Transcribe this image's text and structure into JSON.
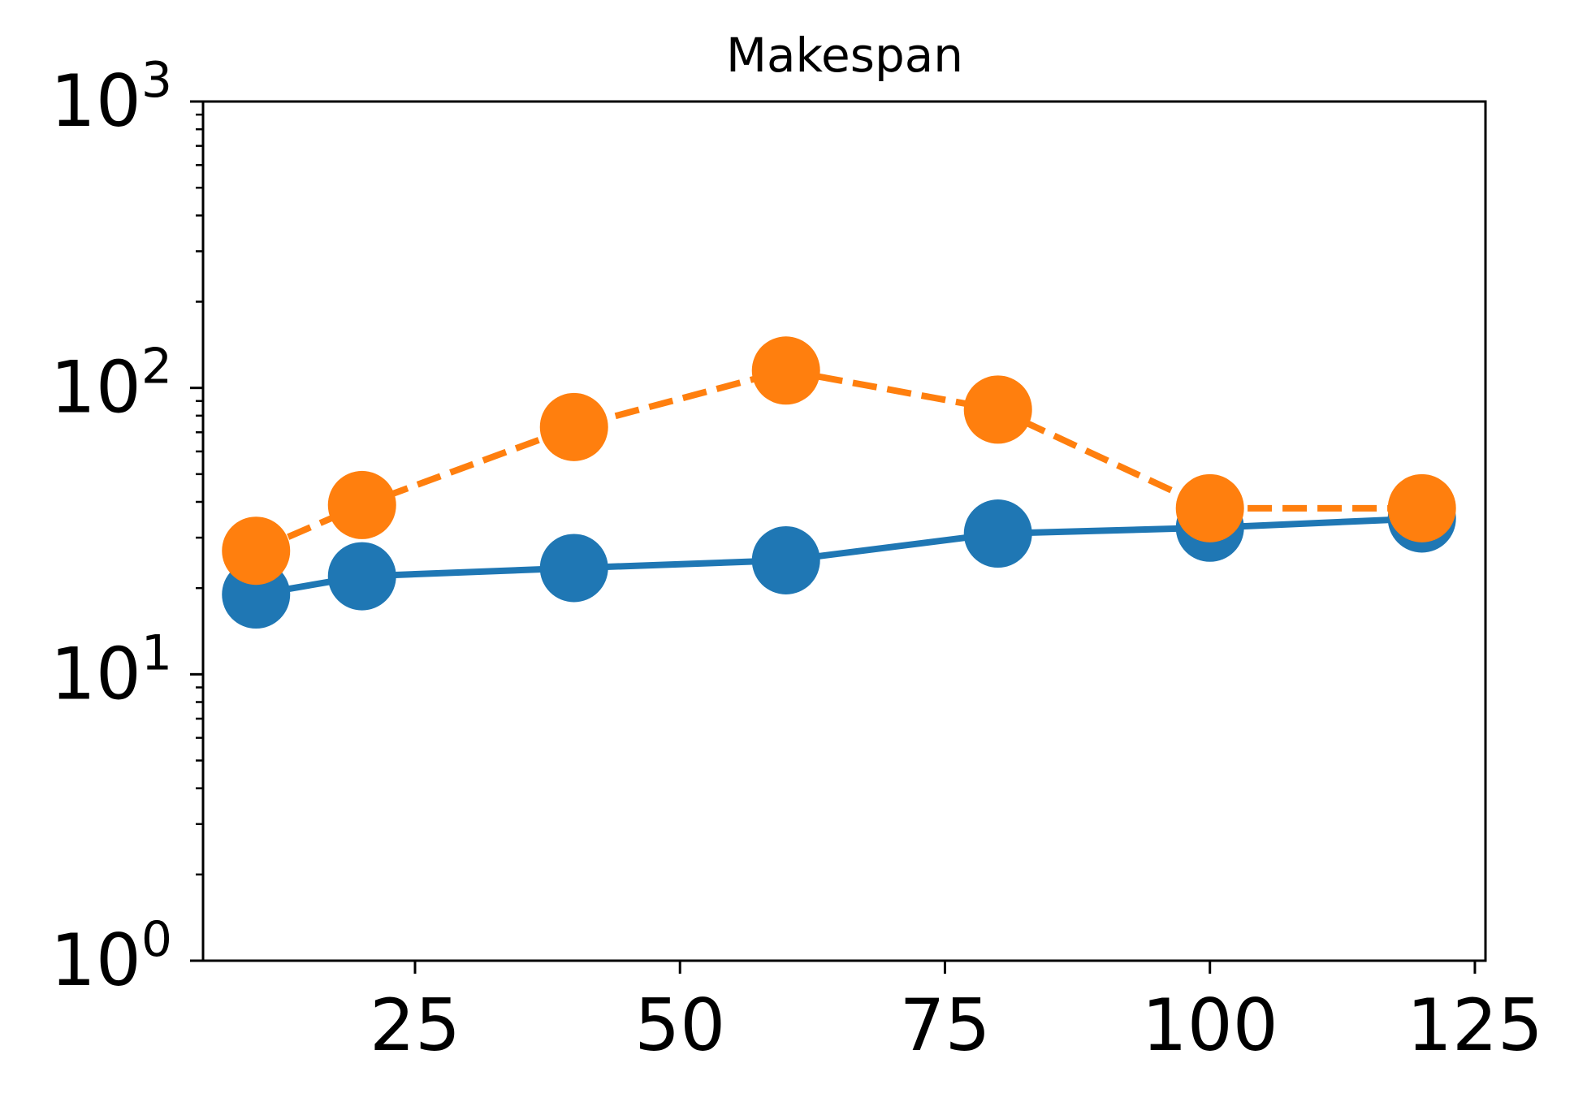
{
  "chart_data": {
    "type": "line",
    "title": "Makespan",
    "xlabel": "",
    "ylabel": "",
    "y_scale": "log",
    "xlim": [
      5,
      126
    ],
    "ylim": [
      1,
      1000
    ],
    "grid": false,
    "x_ticks": [
      {
        "value": 25,
        "label": "25"
      },
      {
        "value": 50,
        "label": "50"
      },
      {
        "value": 75,
        "label": "75"
      },
      {
        "value": 100,
        "label": "100"
      },
      {
        "value": 125,
        "label": "125"
      }
    ],
    "y_ticks": [
      {
        "value": 1,
        "base": "10",
        "exp": "0"
      },
      {
        "value": 10,
        "base": "10",
        "exp": "1"
      },
      {
        "value": 100,
        "base": "10",
        "exp": "2"
      },
      {
        "value": 1000,
        "base": "10",
        "exp": "3"
      }
    ],
    "x": [
      10,
      20,
      40,
      60,
      80,
      100,
      120
    ],
    "series": [
      {
        "values": [
          19,
          22,
          23.5,
          25,
          31,
          32.5,
          35
        ],
        "color": "#1f77b4",
        "line_style": "solid",
        "marker": "circle"
      },
      {
        "values": [
          27,
          39,
          73,
          115,
          84,
          38,
          38
        ],
        "color": "#ff7f0e",
        "line_style": "dashed",
        "marker": "circle"
      }
    ]
  }
}
